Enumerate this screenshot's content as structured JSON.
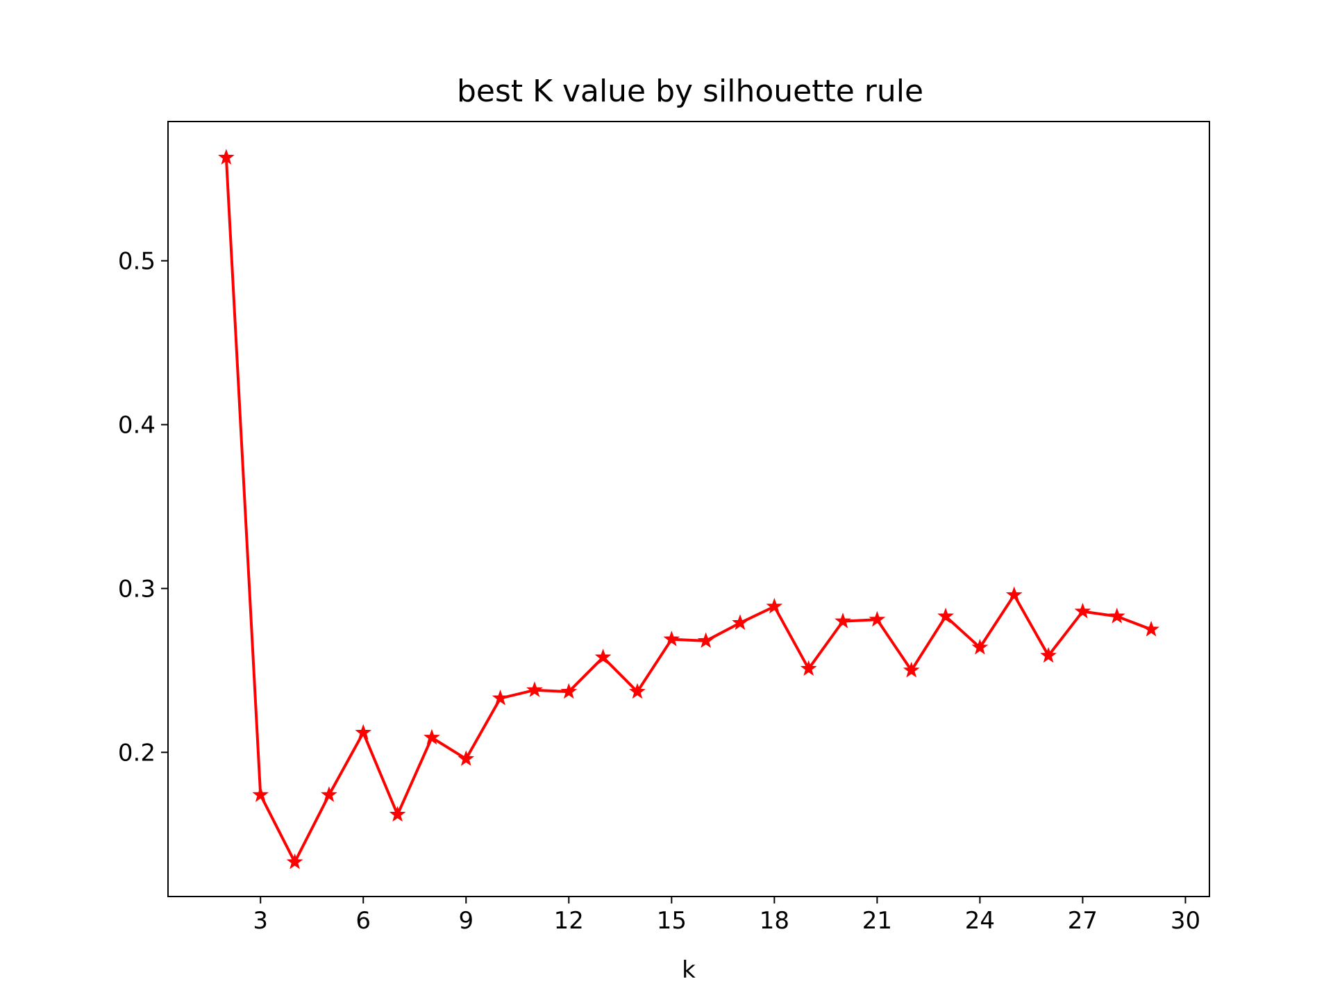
{
  "chart_data": {
    "type": "line",
    "title": "best K value by silhouette rule",
    "xlabel": "k",
    "ylabel": "",
    "xlim": [
      0.3,
      30.7
    ],
    "ylim": [
      0.112,
      0.585
    ],
    "xticks": [
      3,
      6,
      9,
      12,
      15,
      18,
      21,
      24,
      27,
      30
    ],
    "yticks": [
      0.2,
      0.3,
      0.4,
      0.5
    ],
    "grid": false,
    "legend": "none",
    "series": [
      {
        "color": "#ff0000",
        "marker": "star",
        "x": [
          2,
          3,
          4,
          5,
          6,
          7,
          8,
          9,
          10,
          11,
          12,
          13,
          14,
          15,
          16,
          17,
          18,
          19,
          20,
          21,
          22,
          23,
          24,
          25,
          26,
          27,
          28,
          29
        ],
        "y": [
          0.563,
          0.174,
          0.133,
          0.174,
          0.212,
          0.162,
          0.209,
          0.196,
          0.233,
          0.238,
          0.237,
          0.258,
          0.237,
          0.269,
          0.268,
          0.279,
          0.289,
          0.251,
          0.28,
          0.281,
          0.25,
          0.283,
          0.264,
          0.296,
          0.259,
          0.286,
          0.283,
          0.275
        ]
      }
    ]
  }
}
